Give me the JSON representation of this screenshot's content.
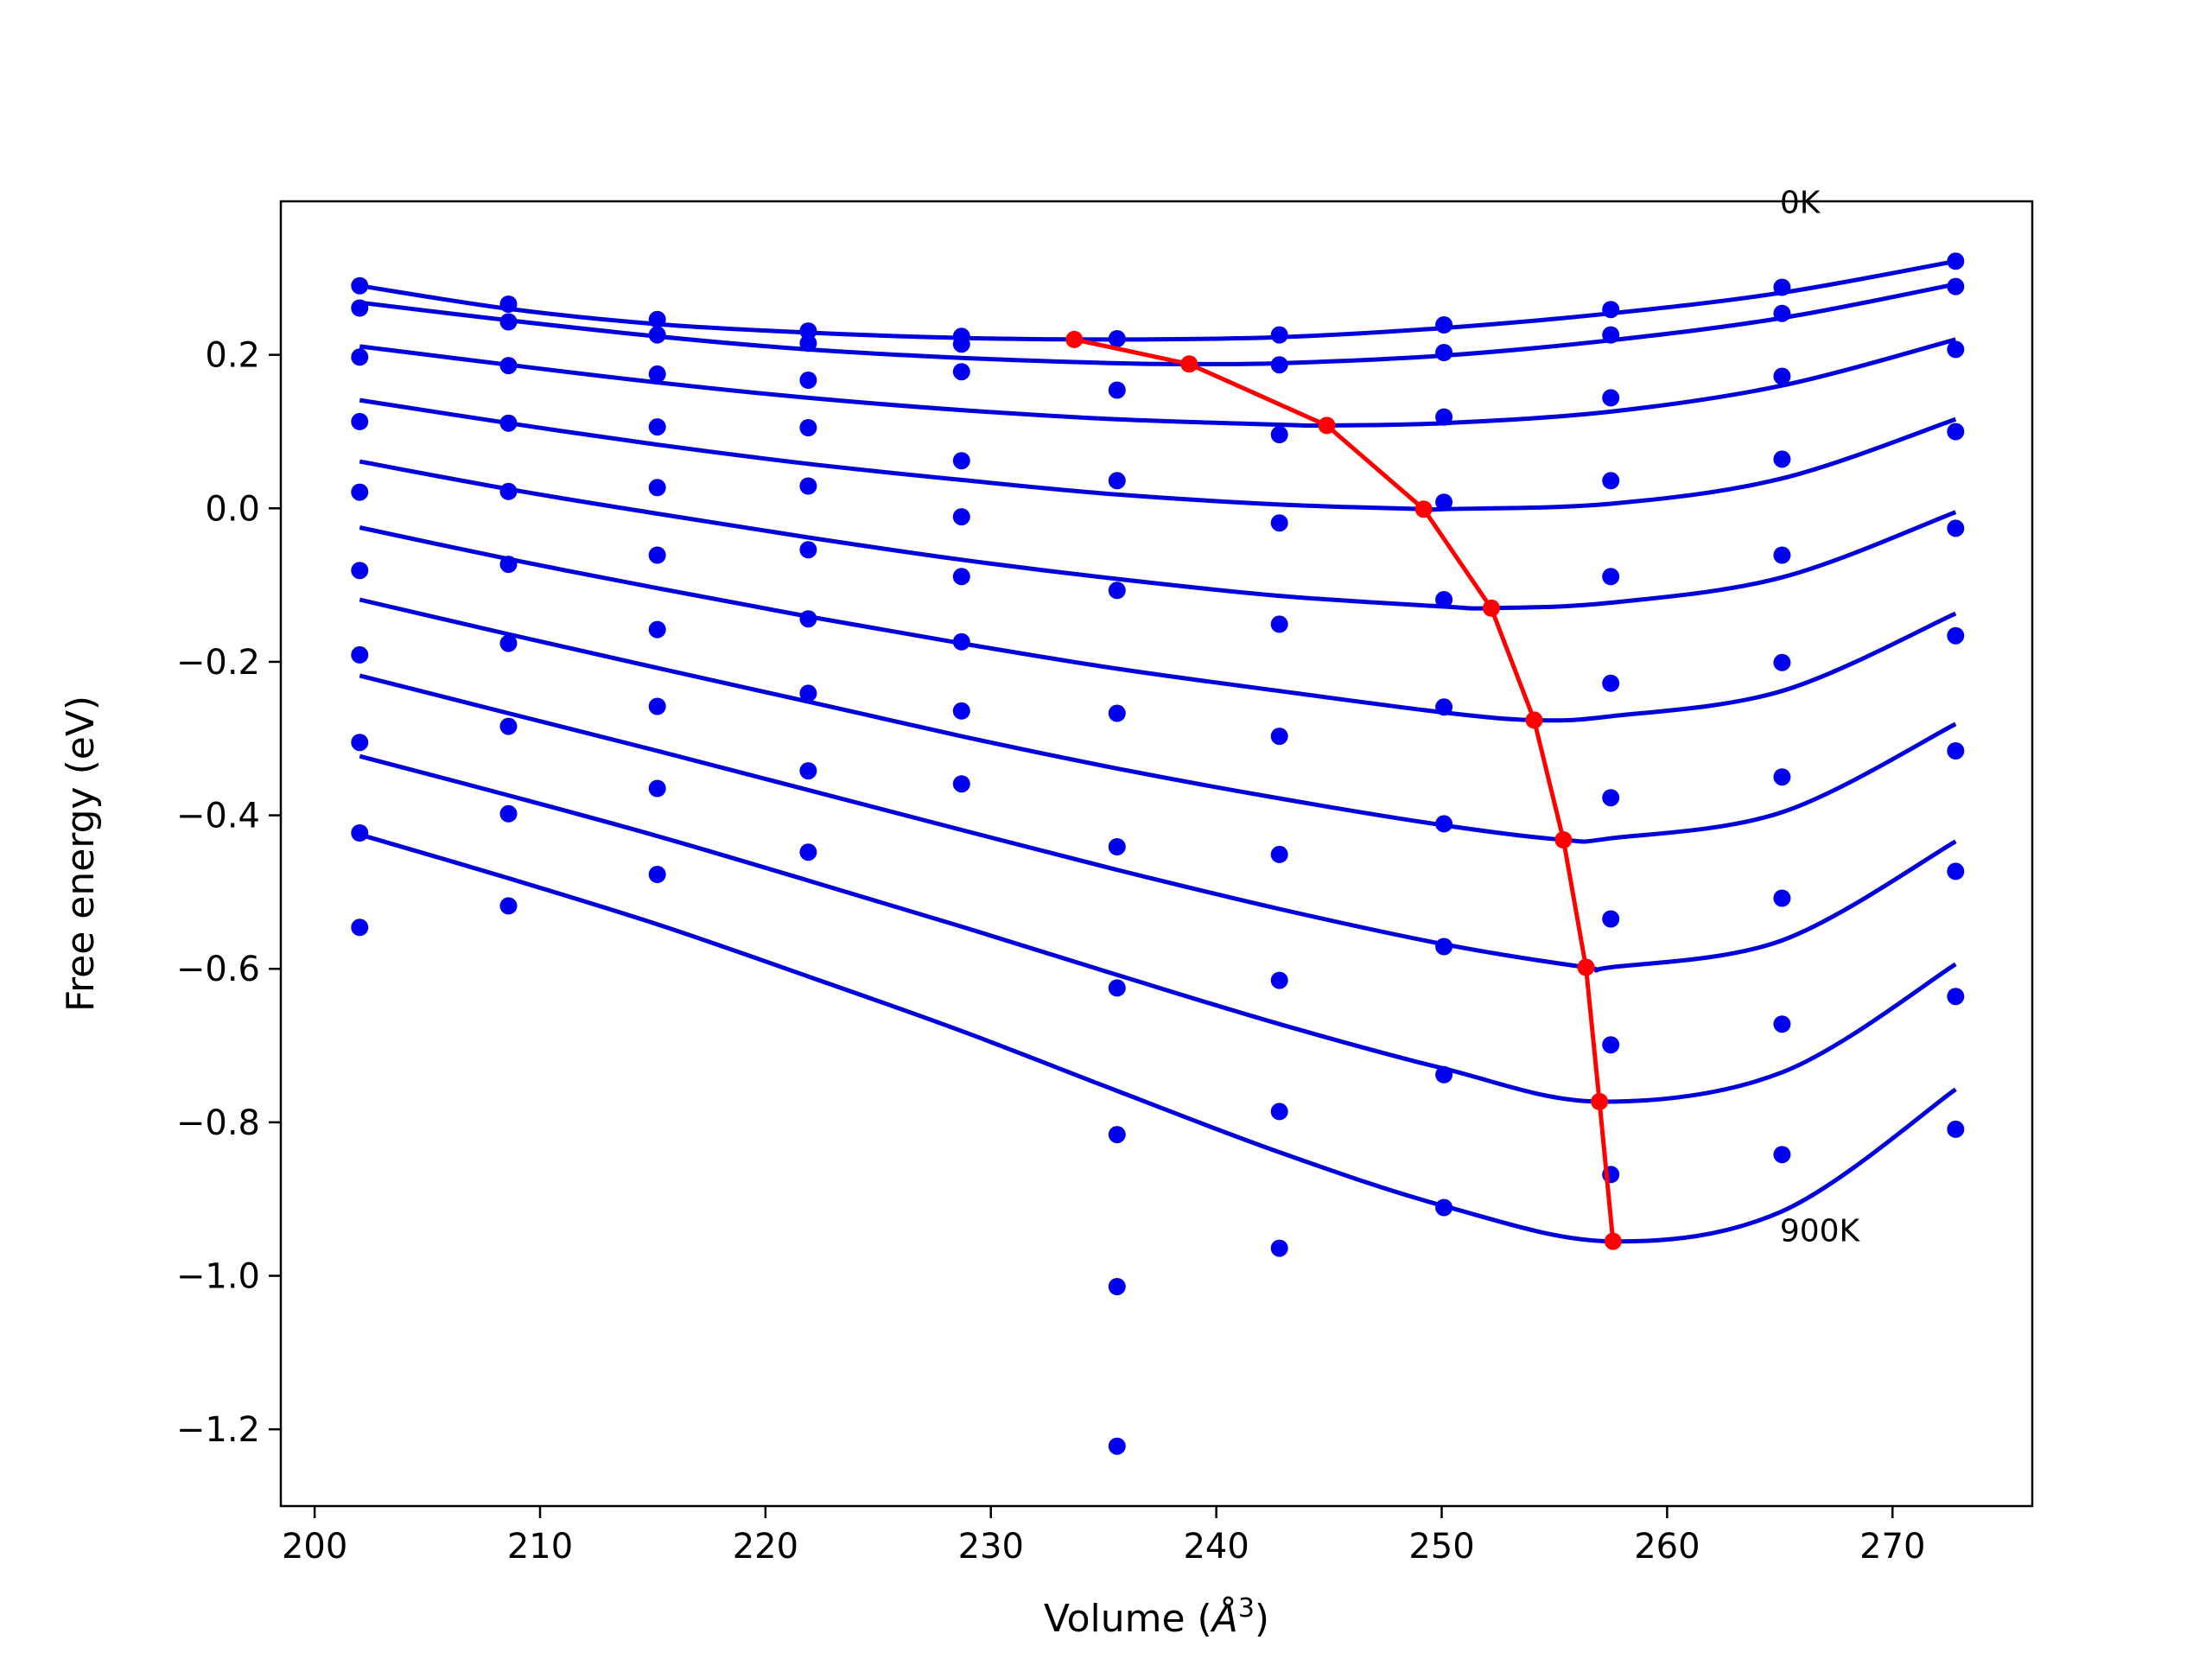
{
  "chart_data": {
    "type": "scatter",
    "title": "",
    "xlabel": "Volume (Å³)",
    "xlabel_base": "Volume (",
    "xlabel_symbol": "Å",
    "xlabel_exp": "3",
    "xlabel_close": ")",
    "ylabel": "Free energy (eV)",
    "xlim": [
      198.5,
      276.2
    ],
    "ylim": [
      -1.3,
      0.4
    ],
    "grid": false,
    "legend": "none",
    "x_ticks": [
      200,
      210,
      220,
      230,
      240,
      250,
      260,
      270
    ],
    "x_tick_labels": [
      "200",
      "210",
      "220",
      "230",
      "240",
      "250",
      "260",
      "270"
    ],
    "y_ticks": [
      0.2,
      0.0,
      -0.2,
      -0.4,
      -0.6,
      -0.8,
      -1.0,
      -1.2
    ],
    "y_tick_labels": [
      "0.2",
      "0.0",
      "−0.2",
      "−0.4",
      "−0.6",
      "−0.8",
      "−1.0",
      "−1.2"
    ],
    "annotations": [
      {
        "text": "0K",
        "x": 265.0,
        "y": 0.385
      },
      {
        "text": "900K",
        "x": 265.0,
        "y": -0.955
      }
    ],
    "colors": {
      "points": "#0000ee",
      "fits": "#0000dd",
      "minimum_path": "#ff0000"
    },
    "volumes": [
      202.0,
      208.6,
      215.2,
      221.9,
      228.7,
      235.6,
      242.8,
      250.1,
      257.5,
      265.1,
      272.8
    ],
    "points": [
      [
        0.29,
        0.266,
        0.246,
        0.231,
        0.224,
        0.221,
        0.226,
        0.239,
        0.259,
        0.288,
        0.322
      ],
      [
        0.261,
        0.243,
        0.226,
        0.215,
        0.214,
        null,
        0.187,
        0.203,
        0.226,
        0.254,
        0.289
      ],
      [
        0.197,
        0.186,
        0.175,
        0.167,
        0.178,
        0.154,
        0.096,
        0.119,
        0.144,
        0.172,
        0.207
      ],
      [
        0.113,
        0.111,
        0.106,
        0.105,
        0.062,
        0.036,
        -0.019,
        0.008,
        0.036,
        0.064,
        0.1
      ],
      [
        0.021,
        0.022,
        0.027,
        0.029,
        -0.011,
        -0.107,
        -0.151,
        -0.119,
        -0.089,
        -0.061,
        -0.026
      ],
      [
        -0.081,
        -0.073,
        -0.061,
        -0.054,
        -0.089,
        -0.267,
        -0.297,
        -0.259,
        -0.228,
        -0.201,
        -0.166
      ],
      [
        -0.191,
        -0.176,
        -0.158,
        -0.144,
        -0.174,
        -0.441,
        -0.451,
        -0.411,
        -0.377,
        -0.35,
        -0.316
      ],
      [
        -0.305,
        -0.284,
        -0.258,
        -0.241,
        -0.264,
        -0.625,
        -0.615,
        -0.571,
        -0.535,
        -0.508,
        -0.473
      ],
      [
        -0.423,
        -0.398,
        -0.365,
        -0.342,
        -0.359,
        -0.816,
        -0.786,
        -0.738,
        -0.699,
        -0.672,
        -0.636
      ],
      [
        -0.546,
        -0.518,
        -0.477,
        -0.448,
        null,
        -1.014,
        -0.964,
        -0.911,
        -0.868,
        -0.842,
        -0.809
      ],
      [
        null,
        null,
        null,
        null,
        null,
        -1.222,
        null,
        null,
        null,
        null,
        null
      ]
    ],
    "fits": [
      {
        "x": [
          202.0,
          208.6,
          215.2,
          221.9,
          228.7,
          235.6,
          242.8,
          250.1,
          257.5,
          265.1,
          272.8
        ],
        "y": [
          0.29,
          0.26,
          0.24,
          0.229,
          0.222,
          0.22,
          0.223,
          0.235,
          0.254,
          0.281,
          0.322
        ]
      },
      {
        "x": [
          202.0,
          208.6,
          215.2,
          221.9,
          228.7,
          235.6,
          238.8,
          242.8,
          250.1,
          257.5,
          265.1,
          272.8
        ],
        "y": [
          0.268,
          0.245,
          0.224,
          0.207,
          0.196,
          0.189,
          0.188,
          0.189,
          0.199,
          0.219,
          0.248,
          0.292
        ]
      },
      {
        "x": [
          202.0,
          208.6,
          215.2,
          221.9,
          228.7,
          235.6,
          242.8,
          244.9,
          250.1,
          257.5,
          265.1,
          272.8
        ],
        "y": [
          0.211,
          0.187,
          0.164,
          0.144,
          0.128,
          0.116,
          0.109,
          0.108,
          0.111,
          0.126,
          0.16,
          0.22
        ]
      },
      {
        "x": [
          202.0,
          208.6,
          215.2,
          221.9,
          228.7,
          235.6,
          242.8,
          249.2,
          250.1,
          257.5,
          265.1,
          272.8
        ],
        "y": [
          0.141,
          0.111,
          0.083,
          0.058,
          0.037,
          0.018,
          0.005,
          -0.001,
          -0.001,
          0.006,
          0.039,
          0.116
        ]
      },
      {
        "x": [
          202.0,
          208.6,
          215.2,
          221.9,
          228.7,
          235.6,
          242.8,
          250.1,
          252.2,
          257.5,
          265.1,
          272.8
        ],
        "y": [
          0.061,
          0.025,
          -0.007,
          -0.038,
          -0.067,
          -0.092,
          -0.114,
          -0.128,
          -0.13,
          -0.123,
          -0.09,
          -0.005
        ]
      },
      {
        "x": [
          202.0,
          208.6,
          215.2,
          221.9,
          228.7,
          235.6,
          242.8,
          250.1,
          254.1,
          257.5,
          265.1,
          272.8
        ],
        "y": [
          -0.025,
          -0.066,
          -0.104,
          -0.141,
          -0.176,
          -0.209,
          -0.238,
          -0.266,
          -0.276,
          -0.271,
          -0.238,
          -0.137
        ]
      },
      {
        "x": [
          202.0,
          208.6,
          215.2,
          221.9,
          228.7,
          235.6,
          242.8,
          250.1,
          255.4,
          257.5,
          265.1,
          272.8
        ],
        "y": [
          -0.119,
          -0.164,
          -0.208,
          -0.252,
          -0.297,
          -0.339,
          -0.378,
          -0.413,
          -0.432,
          -0.43,
          -0.396,
          -0.281
        ]
      },
      {
        "x": [
          202.0,
          208.6,
          215.2,
          221.9,
          228.7,
          235.6,
          242.8,
          250.1,
          256.4,
          257.5,
          265.1,
          272.8
        ],
        "y": [
          -0.218,
          -0.267,
          -0.316,
          -0.367,
          -0.419,
          -0.471,
          -0.522,
          -0.568,
          -0.598,
          -0.598,
          -0.563,
          -0.434
        ]
      },
      {
        "x": [
          202.0,
          208.6,
          215.2,
          221.9,
          228.7,
          235.6,
          242.8,
          250.1,
          257.0,
          265.1,
          272.8
        ],
        "y": [
          -0.323,
          -0.374,
          -0.427,
          -0.485,
          -0.545,
          -0.608,
          -0.672,
          -0.73,
          -0.773,
          -0.735,
          -0.594
        ]
      },
      {
        "x": [
          202.0,
          208.6,
          215.2,
          221.9,
          228.7,
          235.6,
          242.8,
          250.1,
          257.5,
          265.1,
          272.8
        ],
        "y": [
          -0.425,
          -0.482,
          -0.542,
          -0.61,
          -0.681,
          -0.759,
          -0.839,
          -0.909,
          -0.955,
          -0.916,
          -0.757
        ]
      }
    ],
    "minimum_path": {
      "x": [
        233.7,
        238.8,
        244.9,
        249.2,
        252.2,
        254.1,
        255.4,
        256.4,
        257.0,
        257.6
      ],
      "y": [
        0.22,
        0.188,
        0.108,
        -0.001,
        -0.13,
        -0.276,
        -0.432,
        -0.598,
        -0.773,
        -0.955
      ]
    }
  }
}
